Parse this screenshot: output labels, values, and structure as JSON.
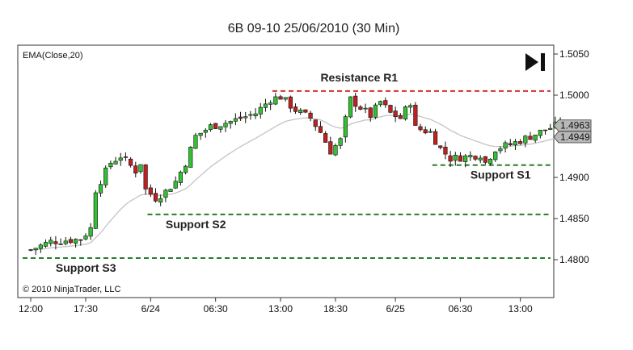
{
  "chart_data": {
    "type": "candlestick",
    "title": "6B 09-10  25/06/2010 (30 Min)",
    "indicator_label": "EMA(Close,20)",
    "copyright": "© 2010 NinjaTrader, LLC",
    "ylim": [
      1.4775,
      1.5075
    ],
    "y_ticks": [
      {
        "value": 1.505,
        "label": "1.5050"
      },
      {
        "value": 1.5,
        "label": "1.5000"
      },
      {
        "value": 1.49,
        "label": "1.4900"
      },
      {
        "value": 1.485,
        "label": "1.4850"
      },
      {
        "value": 1.48,
        "label": "1.4800"
      }
    ],
    "x_ticks": [
      {
        "index": 0,
        "label": "12:00"
      },
      {
        "index": 11,
        "label": "17:30"
      },
      {
        "index": 24,
        "label": "6/24"
      },
      {
        "index": 37,
        "label": "06:30"
      },
      {
        "index": 50,
        "label": "13:00"
      },
      {
        "index": 61,
        "label": "18:30"
      },
      {
        "index": 73,
        "label": "6/25"
      },
      {
        "index": 86,
        "label": "06:30"
      },
      {
        "index": 98,
        "label": "13:00"
      }
    ],
    "price_labels": [
      {
        "value": 1.4963,
        "label": "1.4963"
      },
      {
        "value": 1.4949,
        "label": "1.4949"
      }
    ],
    "levels": [
      {
        "name": "Resistance R1",
        "value": 1.5005,
        "start_index": 50,
        "end_index": 108,
        "color": "#d03030",
        "label_index": 58,
        "label_position": "above"
      },
      {
        "name": "Support S1",
        "value": 1.4915,
        "start_index": 82,
        "end_index": 104,
        "color": "#2a7a2a",
        "label_index": 88,
        "label_position": "below"
      },
      {
        "name": "Support S2",
        "value": 1.4855,
        "start_index": 25,
        "end_index": 104,
        "color": "#2a7a2a",
        "label_index": 27,
        "label_position": "below"
      },
      {
        "name": "Support S3",
        "value": 1.4802,
        "start_index": 0,
        "end_index": 108,
        "color": "#2a7a2a",
        "label_index": 5,
        "label_position": "below"
      }
    ],
    "colors": {
      "up": "#33c033",
      "down": "#c02020",
      "ema": "#c4c4c4",
      "frame": "#333333"
    },
    "anchors": [
      [
        0,
        1.4812
      ],
      [
        4,
        1.4822
      ],
      [
        10,
        1.4825
      ],
      [
        12,
        1.4838
      ],
      [
        13,
        1.4885
      ],
      [
        16,
        1.4918
      ],
      [
        18,
        1.4926
      ],
      [
        21,
        1.4908
      ],
      [
        22,
        1.4918
      ],
      [
        23,
        1.4885
      ],
      [
        25,
        1.4875
      ],
      [
        27,
        1.4883
      ],
      [
        29,
        1.4895
      ],
      [
        31,
        1.4918
      ],
      [
        33,
        1.495
      ],
      [
        36,
        1.4962
      ],
      [
        40,
        1.4968
      ],
      [
        45,
        1.4978
      ],
      [
        48,
        1.4995
      ],
      [
        50,
        1.4998
      ],
      [
        53,
        1.4982
      ],
      [
        56,
        1.4972
      ],
      [
        58,
        1.4955
      ],
      [
        60,
        1.4932
      ],
      [
        62,
        1.4945
      ],
      [
        64,
        1.4995
      ],
      [
        66,
        1.4985
      ],
      [
        68,
        1.4975
      ],
      [
        70,
        1.4992
      ],
      [
        72,
        1.4978
      ],
      [
        74,
        1.4972
      ],
      [
        76,
        1.4992
      ],
      [
        77,
        1.496
      ],
      [
        80,
        1.4955
      ],
      [
        82,
        1.4935
      ],
      [
        84,
        1.4923
      ],
      [
        87,
        1.4925
      ],
      [
        90,
        1.4928
      ],
      [
        91,
        1.4918
      ],
      [
        93,
        1.4935
      ],
      [
        96,
        1.494
      ],
      [
        100,
        1.495
      ],
      [
        103,
        1.4958
      ],
      [
        106,
        1.4965
      ],
      [
        107,
        1.4962
      ]
    ]
  }
}
